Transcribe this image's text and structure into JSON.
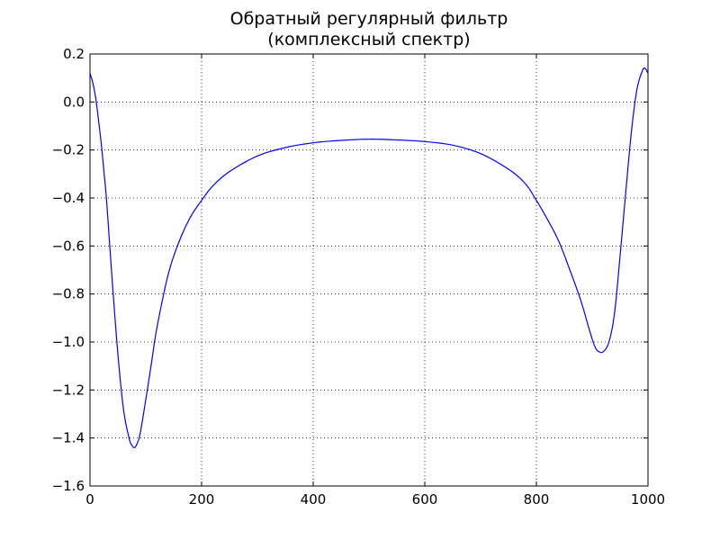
{
  "chart_data": {
    "type": "line",
    "title": [
      "Обратный регулярный фильтр",
      "(комплексный спектр)"
    ],
    "xlabel": "",
    "ylabel": "",
    "xlim": [
      0,
      1000
    ],
    "ylim": [
      -1.6,
      0.2
    ],
    "xticks": [
      0,
      200,
      400,
      600,
      800,
      1000
    ],
    "xtick_labels": [
      "0",
      "200",
      "400",
      "600",
      "800",
      "1000"
    ],
    "yticks": [
      0.2,
      0.0,
      -0.2,
      -0.4,
      -0.6,
      -0.8,
      -1.0,
      -1.2,
      -1.4,
      -1.6
    ],
    "ytick_labels": [
      "0.2",
      "0.0",
      "−0.2",
      "−0.4",
      "−0.6",
      "−0.8",
      "−1.0",
      "−1.2",
      "−1.4",
      "−1.6"
    ],
    "grid": true,
    "line_color": "#0000ff",
    "series": [
      {
        "x": [
          0,
          5,
          10,
          15,
          20,
          25,
          30,
          40,
          50,
          60,
          70,
          75,
          80,
          85,
          90,
          100,
          110,
          120,
          140,
          160,
          180,
          200,
          220,
          250,
          300,
          350,
          400,
          450,
          500,
          550,
          600,
          650,
          700,
          750,
          780,
          800,
          820,
          840,
          860,
          880,
          895,
          905,
          912,
          920,
          930,
          940,
          950,
          960,
          970,
          980,
          990,
          995,
          1000
        ],
        "y": [
          0.12,
          0.08,
          0.02,
          -0.07,
          -0.17,
          -0.29,
          -0.42,
          -0.75,
          -1.05,
          -1.28,
          -1.4,
          -1.43,
          -1.44,
          -1.42,
          -1.38,
          -1.24,
          -1.09,
          -0.94,
          -0.72,
          -0.58,
          -0.48,
          -0.41,
          -0.35,
          -0.29,
          -0.225,
          -0.19,
          -0.17,
          -0.16,
          -0.155,
          -0.158,
          -0.165,
          -0.18,
          -0.215,
          -0.28,
          -0.34,
          -0.41,
          -0.49,
          -0.58,
          -0.7,
          -0.83,
          -0.95,
          -1.02,
          -1.04,
          -1.04,
          -1.0,
          -0.88,
          -0.64,
          -0.38,
          -0.13,
          0.05,
          0.13,
          0.14,
          0.12
        ]
      }
    ]
  }
}
